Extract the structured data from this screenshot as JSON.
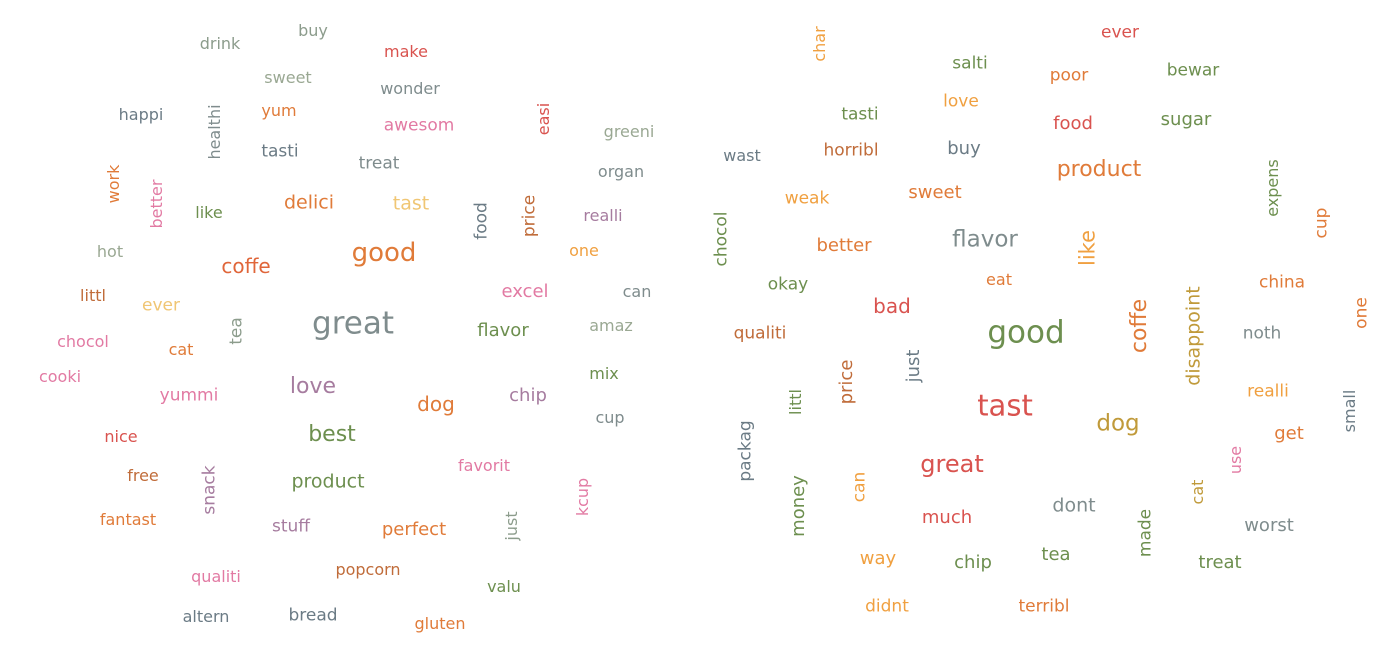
{
  "palette": {
    "gray": "#7f8c8d",
    "orange": "#e07b39",
    "pink": "#e27aa3",
    "green": "#6d8f4f",
    "red": "#d9534f",
    "yellow": "#f0c674",
    "sage": "#9aa893",
    "mauve": "#a67c9f",
    "brown": "#c06c3a",
    "slate": "#6b7b85"
  },
  "clouds": [
    {
      "words": [
        {
          "text": "drink",
          "color": "#8c9c8c"
        },
        {
          "text": "buy",
          "color": "#8c9c8c"
        },
        {
          "text": "make",
          "color": "#d9534f"
        },
        {
          "text": "sweet",
          "color": "#9aa893"
        },
        {
          "text": "wonder",
          "color": "#7f8c8d"
        },
        {
          "text": "happi",
          "color": "#6b7b85"
        },
        {
          "text": "healthi",
          "color": "#7f8c8d"
        },
        {
          "text": "yum",
          "color": "#e07b39"
        },
        {
          "text": "awesom",
          "color": "#e27aa3"
        },
        {
          "text": "easi",
          "color": "#d9534f"
        },
        {
          "text": "greeni",
          "color": "#9aa893"
        },
        {
          "text": "tasti",
          "color": "#6b7b85"
        },
        {
          "text": "treat",
          "color": "#7f8c8d"
        },
        {
          "text": "organ",
          "color": "#7f8c8d"
        },
        {
          "text": "work",
          "color": "#e07b39"
        },
        {
          "text": "better",
          "color": "#e27aa3"
        },
        {
          "text": "like",
          "color": "#6d8f4f"
        },
        {
          "text": "delici",
          "color": "#e07b39"
        },
        {
          "text": "tast",
          "color": "#f0c674"
        },
        {
          "text": "food",
          "color": "#6b7b85"
        },
        {
          "text": "price",
          "color": "#c06c3a"
        },
        {
          "text": "realli",
          "color": "#a67c9f"
        },
        {
          "text": "hot",
          "color": "#9aa893"
        },
        {
          "text": "good",
          "color": "#e07b39"
        },
        {
          "text": "one",
          "color": "#f0a040"
        },
        {
          "text": "coffe",
          "color": "#e0663a"
        },
        {
          "text": "littl",
          "color": "#c06c3a"
        },
        {
          "text": "ever",
          "color": "#f0c674"
        },
        {
          "text": "excel",
          "color": "#e27aa3"
        },
        {
          "text": "can",
          "color": "#7f8c8d"
        },
        {
          "text": "tea",
          "color": "#8c9c8c"
        },
        {
          "text": "great",
          "color": "#7f8c8d"
        },
        {
          "text": "flavor",
          "color": "#6d8f4f"
        },
        {
          "text": "amaz",
          "color": "#9aa893"
        },
        {
          "text": "chocol",
          "color": "#e27aa3"
        },
        {
          "text": "cat",
          "color": "#e07b39"
        },
        {
          "text": "cooki",
          "color": "#e27aa3"
        },
        {
          "text": "love",
          "color": "#a67c9f"
        },
        {
          "text": "mix",
          "color": "#6d8f4f"
        },
        {
          "text": "yummi",
          "color": "#e27aa3"
        },
        {
          "text": "dog",
          "color": "#e07b39"
        },
        {
          "text": "chip",
          "color": "#a67c9f"
        },
        {
          "text": "cup",
          "color": "#7f8c8d"
        },
        {
          "text": "best",
          "color": "#6d8f4f"
        },
        {
          "text": "nice",
          "color": "#d9534f"
        },
        {
          "text": "favorit",
          "color": "#e27aa3"
        },
        {
          "text": "free",
          "color": "#c06c3a"
        },
        {
          "text": "snack",
          "color": "#a67c9f"
        },
        {
          "text": "product",
          "color": "#6d8f4f"
        },
        {
          "text": "kcup",
          "color": "#e27aa3"
        },
        {
          "text": "fantast",
          "color": "#e07b39"
        },
        {
          "text": "stuff",
          "color": "#a67c9f"
        },
        {
          "text": "perfect",
          "color": "#e07b39"
        },
        {
          "text": "just",
          "color": "#8c9c8c"
        },
        {
          "text": "popcorn",
          "color": "#c06c3a"
        },
        {
          "text": "qualiti",
          "color": "#e27aa3"
        },
        {
          "text": "valu",
          "color": "#6d8f4f"
        },
        {
          "text": "altern",
          "color": "#6b7b85"
        },
        {
          "text": "bread",
          "color": "#6b7b85"
        },
        {
          "text": "gluten",
          "color": "#e07b39"
        }
      ]
    },
    {
      "words": [
        {
          "text": "char",
          "color": "#f0a040"
        },
        {
          "text": "ever",
          "color": "#d9534f"
        },
        {
          "text": "salti",
          "color": "#6d8f4f"
        },
        {
          "text": "poor",
          "color": "#e07b39"
        },
        {
          "text": "bewar",
          "color": "#6d8f4f"
        },
        {
          "text": "love",
          "color": "#f0a040"
        },
        {
          "text": "tasti",
          "color": "#6d8f4f"
        },
        {
          "text": "food",
          "color": "#d9534f"
        },
        {
          "text": "sugar",
          "color": "#6d8f4f"
        },
        {
          "text": "wast",
          "color": "#6b7b85"
        },
        {
          "text": "horribl",
          "color": "#c06c3a"
        },
        {
          "text": "buy",
          "color": "#6b7b85"
        },
        {
          "text": "product",
          "color": "#e07b39"
        },
        {
          "text": "expens",
          "color": "#6d8f4f"
        },
        {
          "text": "weak",
          "color": "#f0a040"
        },
        {
          "text": "sweet",
          "color": "#e07b39"
        },
        {
          "text": "cup",
          "color": "#e07b39"
        },
        {
          "text": "chocol",
          "color": "#6d8f4f"
        },
        {
          "text": "better",
          "color": "#e07b39"
        },
        {
          "text": "flavor",
          "color": "#7f8c8d"
        },
        {
          "text": "like",
          "color": "#f0a040"
        },
        {
          "text": "eat",
          "color": "#e07b39"
        },
        {
          "text": "china",
          "color": "#e07b39"
        },
        {
          "text": "okay",
          "color": "#6d8f4f"
        },
        {
          "text": "bad",
          "color": "#d9534f"
        },
        {
          "text": "one",
          "color": "#e07b39"
        },
        {
          "text": "qualiti",
          "color": "#c06c3a"
        },
        {
          "text": "good",
          "color": "#6d8f4f"
        },
        {
          "text": "coffe",
          "color": "#e07b39"
        },
        {
          "text": "disappoint",
          "color": "#c09a3a"
        },
        {
          "text": "noth",
          "color": "#7f8c8d"
        },
        {
          "text": "just",
          "color": "#6b7b85"
        },
        {
          "text": "price",
          "color": "#c06c3a"
        },
        {
          "text": "littl",
          "color": "#6d8f4f"
        },
        {
          "text": "tast",
          "color": "#d9534f"
        },
        {
          "text": "realli",
          "color": "#f0a040"
        },
        {
          "text": "small",
          "color": "#6b7b85"
        },
        {
          "text": "dog",
          "color": "#c09a3a"
        },
        {
          "text": "get",
          "color": "#e07b39"
        },
        {
          "text": "packag",
          "color": "#6b7b85"
        },
        {
          "text": "great",
          "color": "#d9534f"
        },
        {
          "text": "use",
          "color": "#e27aa3"
        },
        {
          "text": "money",
          "color": "#6d8f4f"
        },
        {
          "text": "can",
          "color": "#f0a040"
        },
        {
          "text": "dont",
          "color": "#7f8c8d"
        },
        {
          "text": "cat",
          "color": "#c09a3a"
        },
        {
          "text": "much",
          "color": "#d9534f"
        },
        {
          "text": "made",
          "color": "#6d8f4f"
        },
        {
          "text": "worst",
          "color": "#7f8c8d"
        },
        {
          "text": "way",
          "color": "#f0a040"
        },
        {
          "text": "chip",
          "color": "#6d8f4f"
        },
        {
          "text": "tea",
          "color": "#6d8f4f"
        },
        {
          "text": "treat",
          "color": "#6d8f4f"
        },
        {
          "text": "didnt",
          "color": "#f0a040"
        },
        {
          "text": "terribl",
          "color": "#e07b39"
        }
      ]
    }
  ]
}
